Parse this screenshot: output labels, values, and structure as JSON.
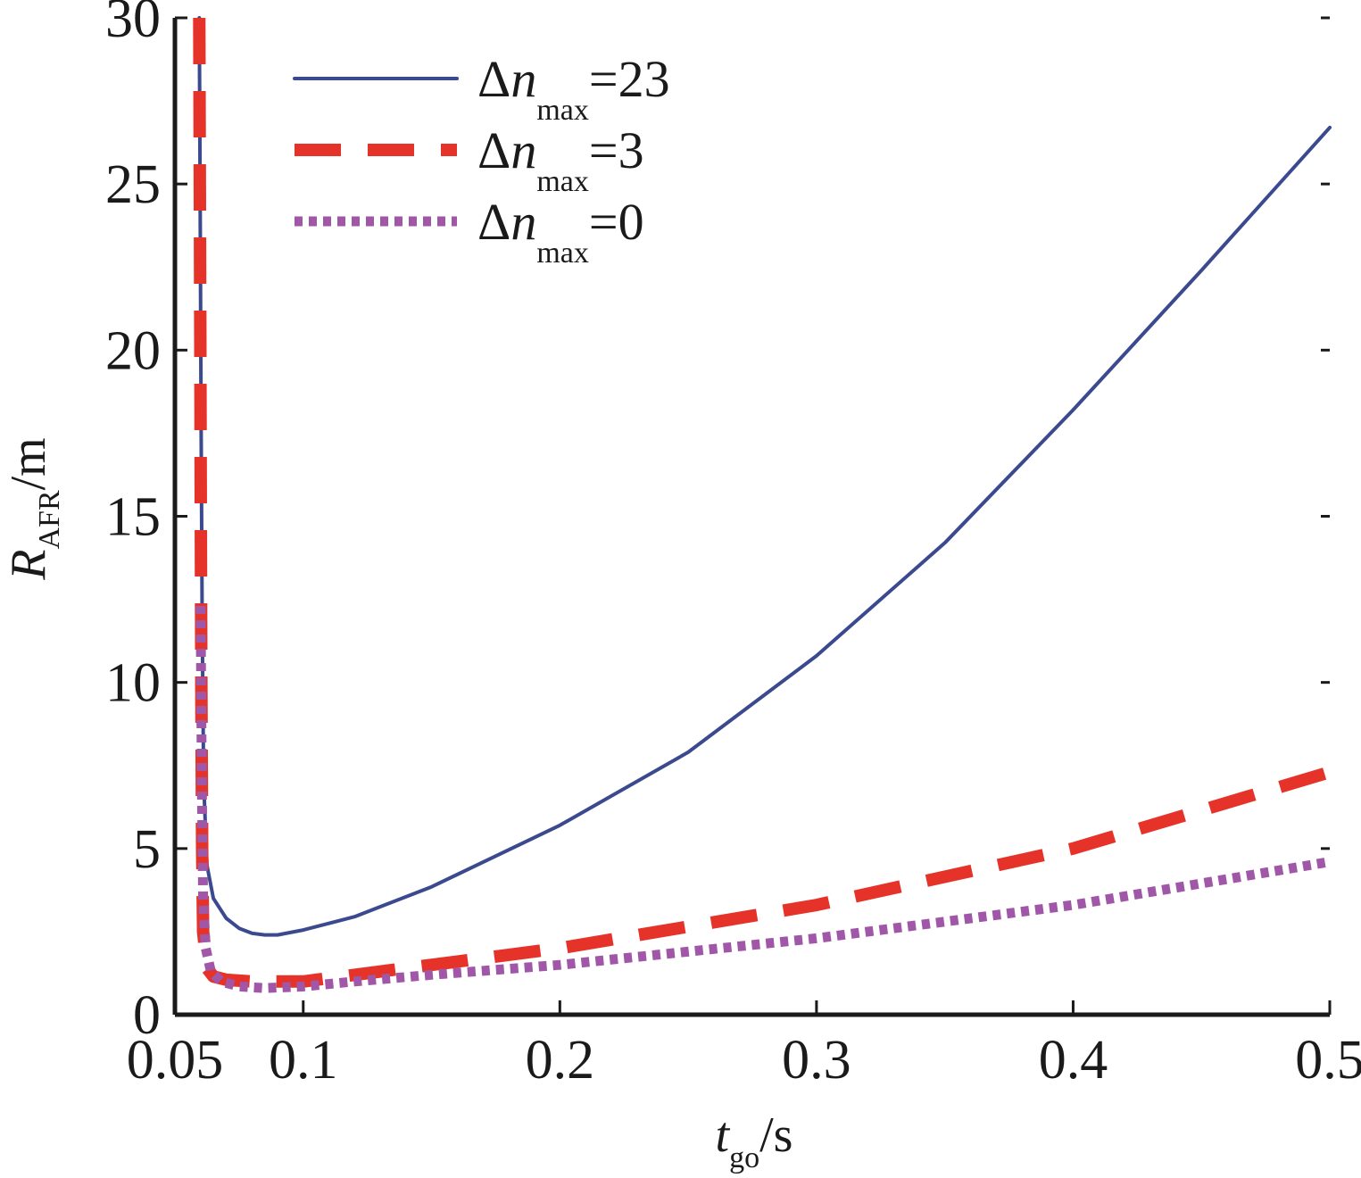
{
  "chart_data": {
    "type": "line",
    "xlim": [
      0.05,
      0.5
    ],
    "ylim": [
      0,
      30
    ],
    "x_ticks": [
      0.05,
      0.1,
      0.2,
      0.3,
      0.4,
      0.5
    ],
    "x_tick_labels": [
      "0.05",
      "0.1",
      "0.2",
      "0.3",
      "0.4",
      "0.5"
    ],
    "y_ticks": [
      0,
      5,
      10,
      15,
      20,
      25,
      30
    ],
    "y_tick_labels": [
      "0",
      "5",
      "10",
      "15",
      "20",
      "25",
      "30"
    ],
    "xlabel": {
      "main": "t",
      "sub": "go",
      "unit": "/s"
    },
    "ylabel": {
      "main": "R",
      "sub": "AFR",
      "unit": "/m"
    },
    "grid": false,
    "legend_position": "top-left",
    "series": [
      {
        "name": "Δn max =23",
        "label": {
          "delta": "Δ",
          "var": "n",
          "sub": "max",
          "value": "=23"
        },
        "style": "solid",
        "color": "#3b4a8f",
        "points": [
          [
            0.0595,
            30
          ],
          [
            0.0598,
            25
          ],
          [
            0.0602,
            18
          ],
          [
            0.0606,
            12
          ],
          [
            0.0612,
            7
          ],
          [
            0.0625,
            4.5
          ],
          [
            0.065,
            3.5
          ],
          [
            0.07,
            2.9
          ],
          [
            0.075,
            2.6
          ],
          [
            0.08,
            2.45
          ],
          [
            0.085,
            2.4
          ],
          [
            0.09,
            2.4
          ],
          [
            0.1,
            2.55
          ],
          [
            0.12,
            2.95
          ],
          [
            0.15,
            3.85
          ],
          [
            0.2,
            5.7
          ],
          [
            0.25,
            7.9
          ],
          [
            0.3,
            10.8
          ],
          [
            0.35,
            14.2
          ],
          [
            0.4,
            18.2
          ],
          [
            0.45,
            22.4
          ],
          [
            0.5,
            26.7
          ]
        ]
      },
      {
        "name": "Δn max =3",
        "label": {
          "delta": "Δ",
          "var": "n",
          "sub": "max",
          "value": "=3"
        },
        "style": "dashed",
        "color": "#e5332a",
        "points": [
          [
            0.0595,
            30
          ],
          [
            0.0597,
            25
          ],
          [
            0.0599,
            20
          ],
          [
            0.0601,
            15
          ],
          [
            0.0603,
            10
          ],
          [
            0.0606,
            5
          ],
          [
            0.061,
            2.5
          ],
          [
            0.0625,
            1.4
          ],
          [
            0.065,
            1.15
          ],
          [
            0.07,
            1.05
          ],
          [
            0.08,
            1.0
          ],
          [
            0.1,
            1.0
          ],
          [
            0.15,
            1.5
          ],
          [
            0.2,
            2.0
          ],
          [
            0.3,
            3.3
          ],
          [
            0.4,
            5.0
          ],
          [
            0.5,
            7.3
          ]
        ]
      },
      {
        "name": "Δn max =0",
        "label": {
          "delta": "Δ",
          "var": "n",
          "sub": "max",
          "value": "=0"
        },
        "style": "dotted",
        "color": "#a057a8",
        "points": [
          [
            0.06,
            12.3
          ],
          [
            0.0603,
            9
          ],
          [
            0.0606,
            6
          ],
          [
            0.061,
            3.5
          ],
          [
            0.062,
            2
          ],
          [
            0.064,
            1.3
          ],
          [
            0.068,
            1.0
          ],
          [
            0.075,
            0.85
          ],
          [
            0.085,
            0.8
          ],
          [
            0.1,
            0.85
          ],
          [
            0.12,
            1.0
          ],
          [
            0.15,
            1.2
          ],
          [
            0.2,
            1.5
          ],
          [
            0.3,
            2.3
          ],
          [
            0.4,
            3.3
          ],
          [
            0.5,
            4.6
          ]
        ]
      }
    ]
  }
}
